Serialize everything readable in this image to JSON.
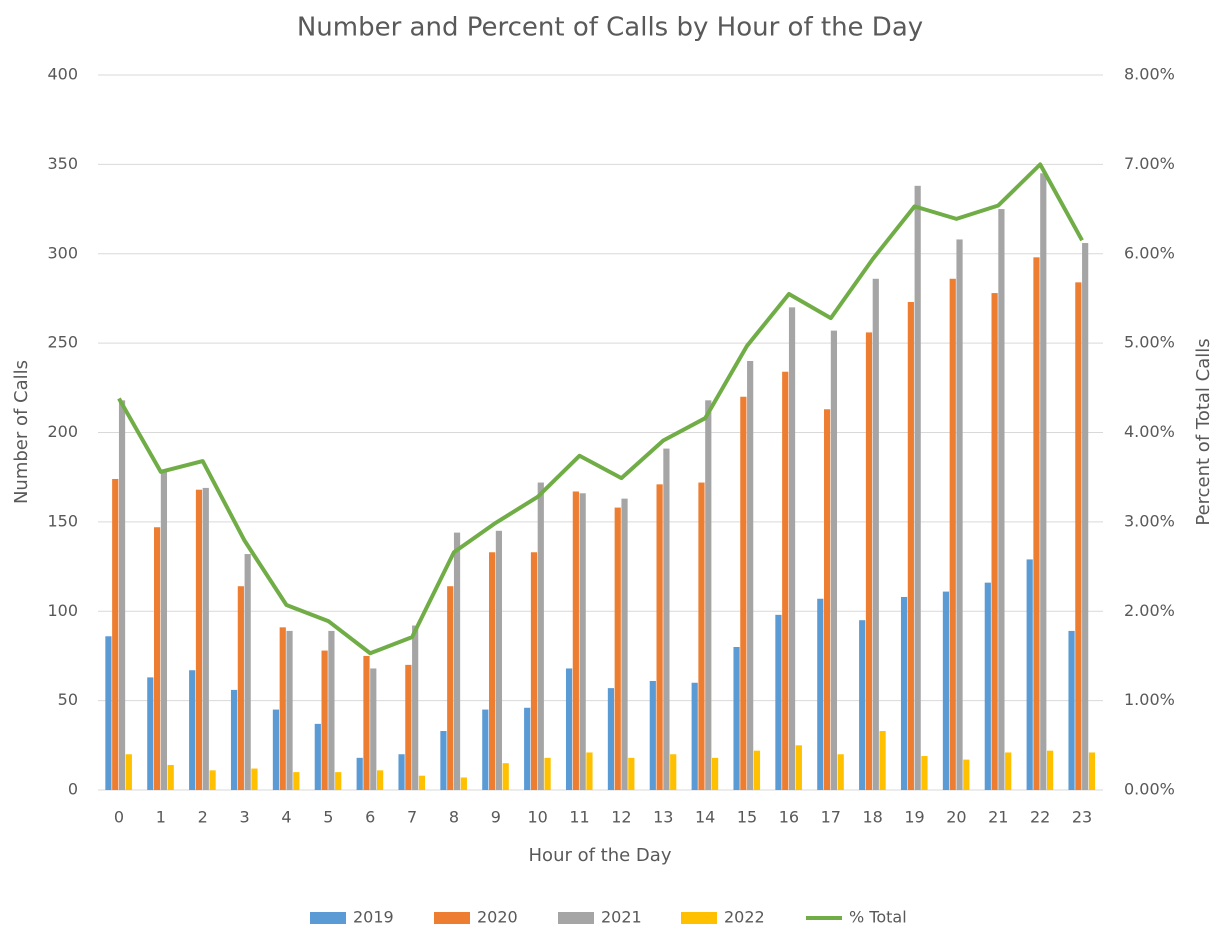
{
  "chart_data": {
    "type": "bar_line",
    "title": "Number and Percent of Calls by Hour of the Day",
    "x_label": "Hour of the Day",
    "y_label": "Number of Calls",
    "y2_label": "Percent of Total Calls",
    "categories": [
      "0",
      "1",
      "2",
      "3",
      "4",
      "5",
      "6",
      "7",
      "8",
      "9",
      "10",
      "11",
      "12",
      "13",
      "14",
      "15",
      "16",
      "17",
      "18",
      "19",
      "20",
      "21",
      "22",
      "23"
    ],
    "series": [
      {
        "name": "2019",
        "type": "bar",
        "color": "#5b9bd5",
        "values": [
          86,
          63,
          67,
          56,
          45,
          37,
          18,
          20,
          33,
          45,
          46,
          68,
          57,
          61,
          60,
          80,
          98,
          107,
          95,
          108,
          111,
          116,
          129,
          89
        ]
      },
      {
        "name": "2020",
        "type": "bar",
        "color": "#ed7d31",
        "values": [
          174,
          147,
          168,
          114,
          91,
          78,
          75,
          70,
          114,
          133,
          133,
          167,
          158,
          171,
          172,
          220,
          234,
          213,
          256,
          273,
          286,
          278,
          298,
          284
        ]
      },
      {
        "name": "2021",
        "type": "bar",
        "color": "#a5a5a5",
        "values": [
          218,
          178,
          169,
          132,
          89,
          89,
          68,
          92,
          144,
          145,
          172,
          166,
          163,
          191,
          218,
          240,
          270,
          257,
          286,
          338,
          308,
          325,
          345,
          306
        ]
      },
      {
        "name": "2022",
        "type": "bar",
        "color": "#ffc000",
        "values": [
          20,
          14,
          11,
          12,
          10,
          10,
          11,
          8,
          7,
          15,
          18,
          21,
          18,
          20,
          18,
          22,
          25,
          20,
          33,
          19,
          17,
          21,
          22,
          21
        ]
      },
      {
        "name": "% Total",
        "type": "line",
        "axis": "y2",
        "color": "#70ad47",
        "values": [
          4.38,
          3.56,
          3.68,
          2.79,
          2.07,
          1.89,
          1.53,
          1.71,
          2.66,
          2.99,
          3.28,
          3.74,
          3.49,
          3.91,
          4.16,
          4.97,
          5.55,
          5.28,
          5.94,
          6.53,
          6.39,
          6.54,
          7.0,
          6.15
        ]
      }
    ],
    "ylim": [
      0,
      400
    ],
    "yticks": [
      0,
      50,
      100,
      150,
      200,
      250,
      300,
      350,
      400
    ],
    "y2lim": [
      0,
      8
    ],
    "y2ticks": [
      {
        "value": 0,
        "label": "0.00%"
      },
      {
        "value": 1,
        "label": "1.00%"
      },
      {
        "value": 2,
        "label": "2.00%"
      },
      {
        "value": 3,
        "label": "3.00%"
      },
      {
        "value": 4,
        "label": "4.00%"
      },
      {
        "value": 5,
        "label": "5.00%"
      },
      {
        "value": 6,
        "label": "6.00%"
      },
      {
        "value": 7,
        "label": "7.00%"
      },
      {
        "value": 8,
        "label": "8.00%"
      }
    ],
    "grid": true,
    "legend": "bottom"
  }
}
